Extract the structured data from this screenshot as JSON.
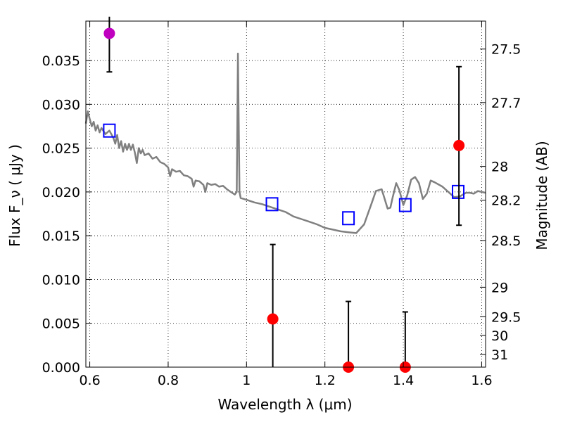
{
  "chart_data": {
    "type": "scatter",
    "title": "",
    "xlabel": "Wavelength  λ (μm)",
    "ylabel": "Flux  F_ν  ( μJy )",
    "ylabel_right": "Magnitude (AB)",
    "xlim": [
      0.59,
      1.61
    ],
    "ylim": [
      0.0,
      0.0395
    ],
    "grid": true,
    "x_ticks": [
      {
        "value": 0.6,
        "label": "0.6"
      },
      {
        "value": 0.8,
        "label": "0.8"
      },
      {
        "value": 1.0,
        "label": "1"
      },
      {
        "value": 1.2,
        "label": "1.2"
      },
      {
        "value": 1.4,
        "label": "1.4"
      },
      {
        "value": 1.6,
        "label": "1.6"
      }
    ],
    "y_ticks": [
      {
        "value": 0.0,
        "label": "0.000"
      },
      {
        "value": 0.005,
        "label": "0.005"
      },
      {
        "value": 0.01,
        "label": "0.010"
      },
      {
        "value": 0.015,
        "label": "0.015"
      },
      {
        "value": 0.02,
        "label": "0.020"
      },
      {
        "value": 0.025,
        "label": "0.025"
      },
      {
        "value": 0.03,
        "label": "0.030"
      },
      {
        "value": 0.035,
        "label": "0.035"
      }
    ],
    "right_ticks": [
      {
        "label": "27.5",
        "mag": 27.5
      },
      {
        "label": "27.7",
        "mag": 27.7
      },
      {
        "label": "28",
        "mag": 28.0
      },
      {
        "label": "28.2",
        "mag": 28.2
      },
      {
        "label": "28.5",
        "mag": 28.5
      },
      {
        "label": "29",
        "mag": 29.0
      },
      {
        "label": "29.5",
        "mag": 29.5
      },
      {
        "label": "30",
        "mag": 30.0
      },
      {
        "label": "31",
        "mag": 31.0
      }
    ],
    "series": [
      {
        "kind": "line",
        "color": "#808080",
        "points": [
          [
            0.59,
            0.0278
          ],
          [
            0.595,
            0.0292
          ],
          [
            0.6,
            0.0283
          ],
          [
            0.605,
            0.0275
          ],
          [
            0.61,
            0.028
          ],
          [
            0.615,
            0.027
          ],
          [
            0.62,
            0.0276
          ],
          [
            0.625,
            0.0268
          ],
          [
            0.63,
            0.0273
          ],
          [
            0.64,
            0.0266
          ],
          [
            0.65,
            0.027
          ],
          [
            0.66,
            0.0262
          ],
          [
            0.665,
            0.0255
          ],
          [
            0.67,
            0.0265
          ],
          [
            0.675,
            0.025
          ],
          [
            0.68,
            0.0258
          ],
          [
            0.685,
            0.0246
          ],
          [
            0.69,
            0.0255
          ],
          [
            0.695,
            0.0248
          ],
          [
            0.7,
            0.0255
          ],
          [
            0.705,
            0.0248
          ],
          [
            0.71,
            0.0254
          ],
          [
            0.715,
            0.0245
          ],
          [
            0.72,
            0.0233
          ],
          [
            0.725,
            0.025
          ],
          [
            0.73,
            0.0244
          ],
          [
            0.735,
            0.0248
          ],
          [
            0.74,
            0.0242
          ],
          [
            0.75,
            0.0244
          ],
          [
            0.76,
            0.0238
          ],
          [
            0.77,
            0.024
          ],
          [
            0.78,
            0.0234
          ],
          [
            0.79,
            0.0232
          ],
          [
            0.8,
            0.0228
          ],
          [
            0.805,
            0.0218
          ],
          [
            0.81,
            0.0226
          ],
          [
            0.82,
            0.0223
          ],
          [
            0.83,
            0.0224
          ],
          [
            0.84,
            0.0219
          ],
          [
            0.85,
            0.0218
          ],
          [
            0.86,
            0.0215
          ],
          [
            0.865,
            0.0206
          ],
          [
            0.87,
            0.0213
          ],
          [
            0.88,
            0.0212
          ],
          [
            0.89,
            0.0208
          ],
          [
            0.895,
            0.02
          ],
          [
            0.9,
            0.021
          ],
          [
            0.91,
            0.0208
          ],
          [
            0.92,
            0.0209
          ],
          [
            0.93,
            0.0206
          ],
          [
            0.94,
            0.0207
          ],
          [
            0.95,
            0.0203
          ],
          [
            0.96,
            0.02
          ],
          [
            0.97,
            0.0197
          ],
          [
            0.975,
            0.02
          ],
          [
            0.978,
            0.0358
          ],
          [
            0.982,
            0.02
          ],
          [
            0.985,
            0.0193
          ],
          [
            1.0,
            0.0191
          ],
          [
            1.02,
            0.0188
          ],
          [
            1.04,
            0.0186
          ],
          [
            1.06,
            0.0183
          ],
          [
            1.08,
            0.018
          ],
          [
            1.1,
            0.0177
          ],
          [
            1.12,
            0.0172
          ],
          [
            1.14,
            0.0169
          ],
          [
            1.16,
            0.0166
          ],
          [
            1.18,
            0.0163
          ],
          [
            1.2,
            0.0159
          ],
          [
            1.22,
            0.0157
          ],
          [
            1.24,
            0.0155
          ],
          [
            1.26,
            0.0154
          ],
          [
            1.28,
            0.0153
          ],
          [
            1.3,
            0.0163
          ],
          [
            1.32,
            0.0188
          ],
          [
            1.33,
            0.0201
          ],
          [
            1.345,
            0.0203
          ],
          [
            1.36,
            0.0181
          ],
          [
            1.367,
            0.0182
          ],
          [
            1.373,
            0.0194
          ],
          [
            1.382,
            0.021
          ],
          [
            1.39,
            0.0202
          ],
          [
            1.4,
            0.0185
          ],
          [
            1.41,
            0.0196
          ],
          [
            1.42,
            0.0214
          ],
          [
            1.43,
            0.0217
          ],
          [
            1.44,
            0.021
          ],
          [
            1.45,
            0.0192
          ],
          [
            1.46,
            0.0198
          ],
          [
            1.47,
            0.0213
          ],
          [
            1.48,
            0.0211
          ],
          [
            1.5,
            0.0206
          ],
          [
            1.52,
            0.0198
          ],
          [
            1.53,
            0.0194
          ],
          [
            1.545,
            0.0195
          ],
          [
            1.56,
            0.0199
          ],
          [
            1.57,
            0.0199
          ],
          [
            1.58,
            0.0198
          ],
          [
            1.59,
            0.0201
          ],
          [
            1.61,
            0.0199
          ]
        ]
      },
      {
        "kind": "open-squares",
        "color": "#0000ff",
        "points": [
          [
            0.65,
            0.027
          ],
          [
            1.065,
            0.0186
          ],
          [
            1.26,
            0.017
          ],
          [
            1.405,
            0.0185
          ],
          [
            1.54,
            0.02
          ]
        ]
      },
      {
        "kind": "points-with-errorbars",
        "color": "#ff0000",
        "points": [
          {
            "x": 1.067,
            "y": 0.0055,
            "ylo": 0.0,
            "yhi": 0.014
          },
          {
            "x": 1.26,
            "y": 0.0,
            "ylo": 0.0,
            "yhi": 0.0075
          },
          {
            "x": 1.405,
            "y": 0.0,
            "ylo": 0.0,
            "yhi": 0.0063
          },
          {
            "x": 1.542,
            "y": 0.0253,
            "ylo": 0.0162,
            "yhi": 0.0343
          }
        ]
      },
      {
        "kind": "points-with-errorbars",
        "color": "#bf00bf",
        "points": [
          {
            "x": 0.65,
            "y": 0.0381,
            "ylo": 0.0337,
            "yhi": 0.04
          }
        ]
      }
    ]
  }
}
